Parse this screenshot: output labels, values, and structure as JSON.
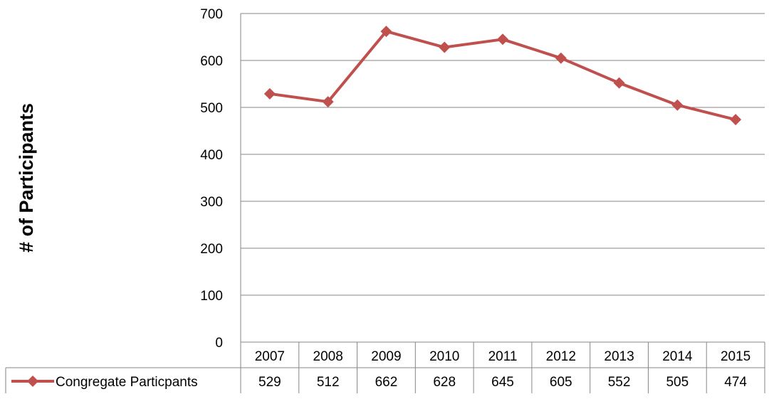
{
  "chart_data": {
    "type": "line",
    "title": "",
    "xlabel": "",
    "ylabel": "# of Participants",
    "ylim": [
      0,
      700
    ],
    "yticks": [
      "0",
      "100",
      "200",
      "300",
      "400",
      "500",
      "600",
      "700"
    ],
    "categories": [
      "2007",
      "2008",
      "2009",
      "2010",
      "2011",
      "2012",
      "2013",
      "2014",
      "2015"
    ],
    "series": [
      {
        "name": "Congregate Particpants",
        "values": [
          529,
          512,
          662,
          628,
          645,
          605,
          552,
          505,
          474
        ],
        "color": "#c0504d",
        "marker": "diamond"
      }
    ],
    "grid": true,
    "legend": "data-table"
  }
}
